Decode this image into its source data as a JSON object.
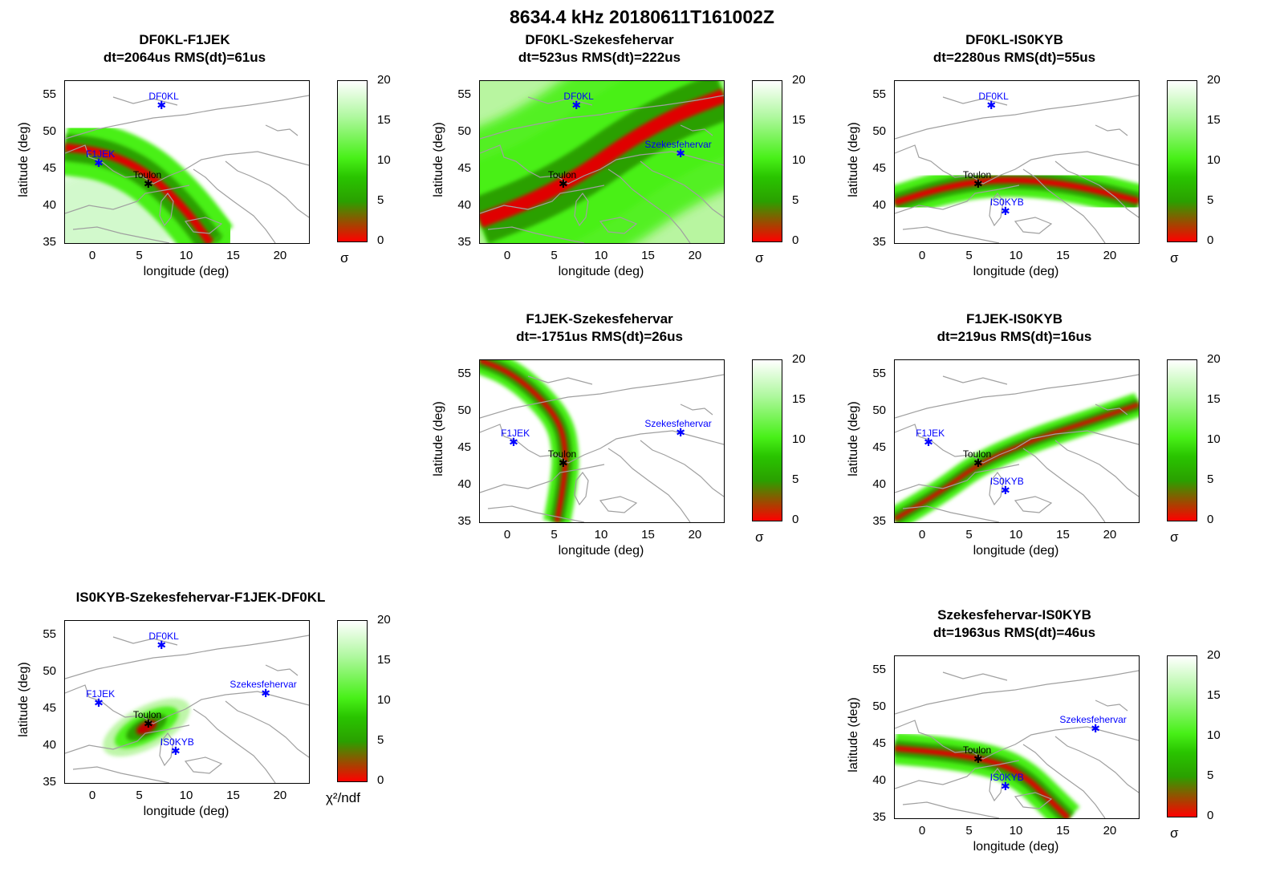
{
  "title": "8634.4 kHz 20180611T161002Z",
  "axis": {
    "xlabel": "longitude (deg)",
    "ylabel": "latitude (deg)",
    "xticks": [
      "0",
      "5",
      "10",
      "15",
      "20"
    ],
    "yticks": [
      "55",
      "50",
      "45",
      "40",
      "35"
    ],
    "cbticks": [
      "20",
      "15",
      "10",
      "5",
      "0"
    ],
    "sigma_label": "σ",
    "chi2_label": "χ²/ndf"
  },
  "colors": {
    "station": "#0000ff",
    "target": "#000000",
    "coast": "#a0a0a0",
    "band_core": "#e00000",
    "band_mid": "#2aa000",
    "band_edge": "#48f018"
  },
  "chart_data": [
    {
      "type": "heatmap",
      "title": "DF0KL-F1JEK",
      "subtitle": "dt=2064us RMS(dt)=61us",
      "xlim": [
        -3,
        23
      ],
      "ylim": [
        35,
        57
      ],
      "clim": [
        0,
        20
      ],
      "colorbar_label": "σ",
      "stations": [
        {
          "name": "DF0KL",
          "lon": 7.3,
          "lat": 53.7,
          "color": "blue"
        },
        {
          "name": "F1JEK",
          "lon": 0.6,
          "lat": 45.9,
          "color": "blue"
        },
        {
          "name": "Toulon",
          "lon": 5.9,
          "lat": 43.1,
          "color": "black"
        }
      ]
    },
    {
      "type": "heatmap",
      "title": "DF0KL-Szekesfehervar",
      "subtitle": "dt=523us RMS(dt)=222us",
      "xlim": [
        -3,
        23
      ],
      "ylim": [
        35,
        57
      ],
      "clim": [
        0,
        20
      ],
      "colorbar_label": "σ",
      "stations": [
        {
          "name": "DF0KL",
          "lon": 7.3,
          "lat": 53.7,
          "color": "blue"
        },
        {
          "name": "Szekesfehervar",
          "lon": 18.4,
          "lat": 47.2,
          "color": "blue"
        },
        {
          "name": "Toulon",
          "lon": 5.9,
          "lat": 43.1,
          "color": "black"
        }
      ]
    },
    {
      "type": "heatmap",
      "title": "DF0KL-IS0KYB",
      "subtitle": "dt=2280us RMS(dt)=55us",
      "xlim": [
        -3,
        23
      ],
      "ylim": [
        35,
        57
      ],
      "clim": [
        0,
        20
      ],
      "colorbar_label": "σ",
      "stations": [
        {
          "name": "DF0KL",
          "lon": 7.3,
          "lat": 53.7,
          "color": "blue"
        },
        {
          "name": "IS0KYB",
          "lon": 8.8,
          "lat": 39.4,
          "color": "blue"
        },
        {
          "name": "Toulon",
          "lon": 5.9,
          "lat": 43.1,
          "color": "black"
        }
      ]
    },
    {
      "type": "heatmap",
      "title": "F1JEK-Szekesfehervar",
      "subtitle": "dt=-1751us RMS(dt)=26us",
      "xlim": [
        -3,
        23
      ],
      "ylim": [
        35,
        57
      ],
      "clim": [
        0,
        20
      ],
      "colorbar_label": "σ",
      "stations": [
        {
          "name": "F1JEK",
          "lon": 0.6,
          "lat": 45.9,
          "color": "blue"
        },
        {
          "name": "Szekesfehervar",
          "lon": 18.4,
          "lat": 47.2,
          "color": "blue"
        },
        {
          "name": "Toulon",
          "lon": 5.9,
          "lat": 43.1,
          "color": "black"
        }
      ]
    },
    {
      "type": "heatmap",
      "title": "F1JEK-IS0KYB",
      "subtitle": "dt=219us RMS(dt)=16us",
      "xlim": [
        -3,
        23
      ],
      "ylim": [
        35,
        57
      ],
      "clim": [
        0,
        20
      ],
      "colorbar_label": "σ",
      "stations": [
        {
          "name": "F1JEK",
          "lon": 0.6,
          "lat": 45.9,
          "color": "blue"
        },
        {
          "name": "IS0KYB",
          "lon": 8.8,
          "lat": 39.4,
          "color": "blue"
        },
        {
          "name": "Toulon",
          "lon": 5.9,
          "lat": 43.1,
          "color": "black"
        }
      ]
    },
    {
      "type": "heatmap",
      "title": "IS0KYB-Szekesfehervar-F1JEK-DF0KL",
      "subtitle": "",
      "xlim": [
        -3,
        23
      ],
      "ylim": [
        35,
        57
      ],
      "clim": [
        0,
        20
      ],
      "colorbar_label": "χ²/ndf",
      "stations": [
        {
          "name": "DF0KL",
          "lon": 7.3,
          "lat": 53.7,
          "color": "blue"
        },
        {
          "name": "F1JEK",
          "lon": 0.6,
          "lat": 45.9,
          "color": "blue"
        },
        {
          "name": "Szekesfehervar",
          "lon": 18.4,
          "lat": 47.2,
          "color": "blue"
        },
        {
          "name": "IS0KYB",
          "lon": 8.8,
          "lat": 39.4,
          "color": "blue"
        },
        {
          "name": "Toulon",
          "lon": 5.9,
          "lat": 43.1,
          "color": "black"
        }
      ]
    },
    {
      "type": "heatmap",
      "title": "Szekesfehervar-IS0KYB",
      "subtitle": "dt=1963us RMS(dt)=46us",
      "xlim": [
        -3,
        23
      ],
      "ylim": [
        35,
        57
      ],
      "clim": [
        0,
        20
      ],
      "colorbar_label": "σ",
      "stations": [
        {
          "name": "Szekesfehervar",
          "lon": 18.4,
          "lat": 47.2,
          "color": "blue"
        },
        {
          "name": "IS0KYB",
          "lon": 8.8,
          "lat": 39.4,
          "color": "blue"
        },
        {
          "name": "Toulon",
          "lon": 5.9,
          "lat": 43.1,
          "color": "black"
        }
      ]
    }
  ]
}
